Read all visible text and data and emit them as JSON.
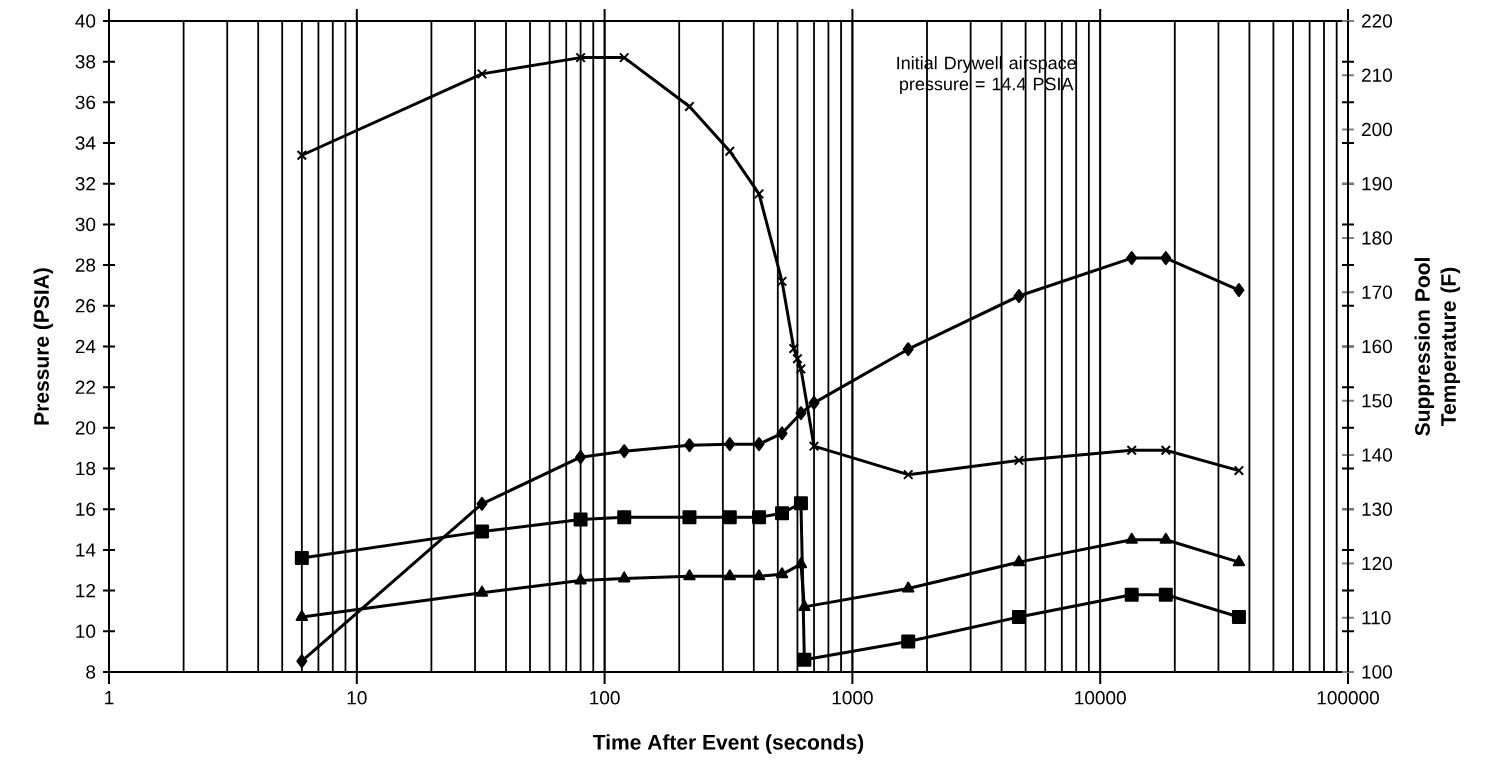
{
  "chart_data": {
    "type": "line",
    "xlabel": "Time After Event (seconds)",
    "ylabel": "Pressure (PSIA)",
    "y2label": "Suppression Pool Temperature (F)",
    "annotations": [
      "Initial Drywell airspace pressure = 14.4 PSIA"
    ],
    "log": "x",
    "grid": "x",
    "line_style": "solid",
    "xlim": [
      1,
      100000
    ],
    "xticks": [
      1,
      10,
      100,
      1000,
      10000,
      100000
    ],
    "ylim": [
      8,
      40
    ],
    "yticks": [
      8,
      10,
      12,
      14,
      16,
      18,
      20,
      22,
      24,
      26,
      28,
      30,
      32,
      34,
      36,
      38,
      40
    ],
    "y2lim": [
      100,
      220
    ],
    "y2ticks": [
      100,
      110,
      120,
      130,
      140,
      150,
      160,
      170,
      180,
      190,
      200,
      210,
      220
    ],
    "series": [
      {
        "color": "#000000",
        "marker": "cross",
        "x": [
          6,
          32,
          80,
          120,
          220,
          320,
          420,
          520,
          580,
          600,
          620,
          700,
          1680,
          4700,
          13400,
          18400,
          36300
        ],
        "values": [
          33.4,
          37.4,
          38.2,
          38.2,
          35.8,
          33.6,
          31.5,
          27.2,
          23.9,
          23.4,
          22.9,
          19.1,
          17.7,
          18.4,
          18.9,
          18.9,
          17.9
        ]
      },
      {
        "color": "#000000",
        "marker": "square",
        "x": [
          6,
          32,
          80,
          120,
          220,
          320,
          420,
          520,
          620,
          640,
          1680,
          4700,
          13400,
          18400,
          36300
        ],
        "values": [
          13.6,
          14.9,
          15.5,
          15.6,
          15.6,
          15.6,
          15.6,
          15.8,
          16.3,
          8.6,
          9.5,
          10.7,
          11.8,
          11.8,
          10.7
        ]
      },
      {
        "color": "#000000",
        "marker": "triangle",
        "x": [
          6,
          32,
          80,
          120,
          220,
          320,
          420,
          520,
          620,
          640,
          1680,
          4700,
          13400,
          18400,
          36300
        ],
        "values": [
          10.7,
          11.9,
          12.5,
          12.6,
          12.7,
          12.7,
          12.7,
          12.8,
          13.3,
          11.2,
          12.1,
          13.4,
          14.5,
          14.5,
          13.4
        ]
      },
      {
        "color": "#000000",
        "marker": "diamond",
        "axis": "y2",
        "x": [
          6,
          32,
          80,
          120,
          220,
          320,
          420,
          520,
          620,
          700,
          1680,
          4700,
          13400,
          18400,
          36300
        ],
        "values": [
          102,
          131,
          139.6,
          140.7,
          141.8,
          142,
          142,
          144,
          147.7,
          149.6,
          159.5,
          169.3,
          176.3,
          176.3,
          170.4
        ]
      }
    ]
  }
}
